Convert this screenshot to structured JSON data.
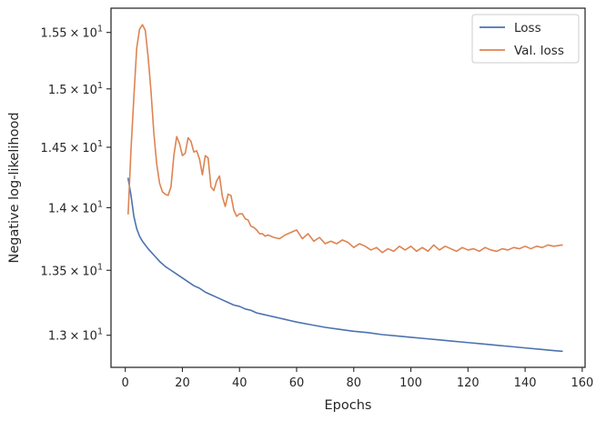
{
  "chart_data": {
    "type": "line",
    "title": "",
    "xlabel": "Epochs",
    "ylabel": "Negative log-likelihood",
    "xlim": [
      -5,
      161
    ],
    "ylim": [
      12.76,
      15.72
    ],
    "yscale": "log",
    "grid": false,
    "legend_position": "top-right",
    "x_ticks": [
      {
        "value": 0,
        "label": "0"
      },
      {
        "value": 20,
        "label": "20"
      },
      {
        "value": 40,
        "label": "40"
      },
      {
        "value": 60,
        "label": "60"
      },
      {
        "value": 80,
        "label": "80"
      },
      {
        "value": 100,
        "label": "100"
      },
      {
        "value": 120,
        "label": "120"
      },
      {
        "value": 140,
        "label": "140"
      },
      {
        "value": 160,
        "label": "160"
      }
    ],
    "y_ticks": [
      {
        "value": 13.0,
        "mantissa": "1.3",
        "times": "×",
        "base": "10",
        "exp": "1"
      },
      {
        "value": 13.5,
        "mantissa": "1.35",
        "times": "×",
        "base": "10",
        "exp": "1"
      },
      {
        "value": 14.0,
        "mantissa": "1.4",
        "times": "×",
        "base": "10",
        "exp": "1"
      },
      {
        "value": 14.5,
        "mantissa": "1.45",
        "times": "×",
        "base": "10",
        "exp": "1"
      },
      {
        "value": 15.0,
        "mantissa": "1.5",
        "times": "×",
        "base": "10",
        "exp": "1"
      },
      {
        "value": 15.5,
        "mantissa": "1.55",
        "times": "×",
        "base": "10",
        "exp": "1"
      }
    ],
    "series": [
      {
        "name": "Loss",
        "color": "#4c72b0",
        "x": [
          1,
          2,
          3,
          4,
          5,
          6,
          8,
          10,
          12,
          14,
          16,
          18,
          20,
          22,
          24,
          26,
          28,
          30,
          32,
          34,
          36,
          38,
          40,
          42,
          44,
          46,
          48,
          50,
          52,
          54,
          56,
          58,
          60,
          65,
          70,
          75,
          80,
          85,
          90,
          95,
          100,
          105,
          110,
          115,
          120,
          125,
          130,
          135,
          140,
          145,
          150,
          153
        ],
        "y": [
          14.24,
          14.1,
          13.93,
          13.83,
          13.77,
          13.73,
          13.67,
          13.62,
          13.57,
          13.53,
          13.5,
          13.47,
          13.44,
          13.41,
          13.38,
          13.36,
          13.33,
          13.31,
          13.29,
          13.27,
          13.25,
          13.23,
          13.22,
          13.2,
          13.19,
          13.17,
          13.16,
          13.15,
          13.14,
          13.13,
          13.12,
          13.11,
          13.1,
          13.08,
          13.06,
          13.045,
          13.03,
          13.02,
          13.005,
          12.995,
          12.985,
          12.975,
          12.965,
          12.955,
          12.945,
          12.935,
          12.925,
          12.915,
          12.905,
          12.895,
          12.885,
          12.88
        ]
      },
      {
        "name": "Val. loss",
        "color": "#dd8452",
        "x": [
          1,
          2,
          3,
          4,
          5,
          6,
          7,
          8,
          9,
          10,
          11,
          12,
          13,
          14,
          15,
          16,
          17,
          18,
          19,
          20,
          21,
          22,
          23,
          24,
          25,
          26,
          27,
          28,
          29,
          30,
          31,
          32,
          33,
          34,
          35,
          36,
          37,
          38,
          39,
          40,
          41,
          42,
          43,
          44,
          45,
          46,
          47,
          48,
          49,
          50,
          52,
          54,
          56,
          58,
          60,
          62,
          64,
          66,
          68,
          70,
          72,
          74,
          76,
          78,
          80,
          82,
          84,
          86,
          88,
          90,
          92,
          94,
          96,
          98,
          100,
          102,
          104,
          106,
          108,
          110,
          112,
          114,
          116,
          118,
          120,
          122,
          124,
          126,
          128,
          130,
          132,
          134,
          136,
          138,
          140,
          142,
          144,
          146,
          148,
          150,
          153
        ],
        "y": [
          13.95,
          14.48,
          14.93,
          15.36,
          15.53,
          15.57,
          15.52,
          15.28,
          14.98,
          14.62,
          14.36,
          14.2,
          14.13,
          14.11,
          14.1,
          14.17,
          14.43,
          14.59,
          14.53,
          14.43,
          14.45,
          14.58,
          14.55,
          14.46,
          14.47,
          14.4,
          14.27,
          14.43,
          14.41,
          14.17,
          14.14,
          14.22,
          14.26,
          14.09,
          14.01,
          14.11,
          14.1,
          13.98,
          13.93,
          13.95,
          13.95,
          13.91,
          13.9,
          13.85,
          13.84,
          13.82,
          13.79,
          13.79,
          13.77,
          13.78,
          13.76,
          13.75,
          13.78,
          13.8,
          13.82,
          13.75,
          13.79,
          13.73,
          13.76,
          13.71,
          13.73,
          13.71,
          13.74,
          13.72,
          13.68,
          13.71,
          13.69,
          13.66,
          13.68,
          13.64,
          13.67,
          13.65,
          13.69,
          13.66,
          13.69,
          13.65,
          13.68,
          13.65,
          13.7,
          13.66,
          13.69,
          13.67,
          13.65,
          13.68,
          13.66,
          13.67,
          13.65,
          13.68,
          13.66,
          13.65,
          13.67,
          13.66,
          13.68,
          13.67,
          13.69,
          13.67,
          13.69,
          13.68,
          13.7,
          13.69,
          13.7
        ]
      }
    ]
  }
}
